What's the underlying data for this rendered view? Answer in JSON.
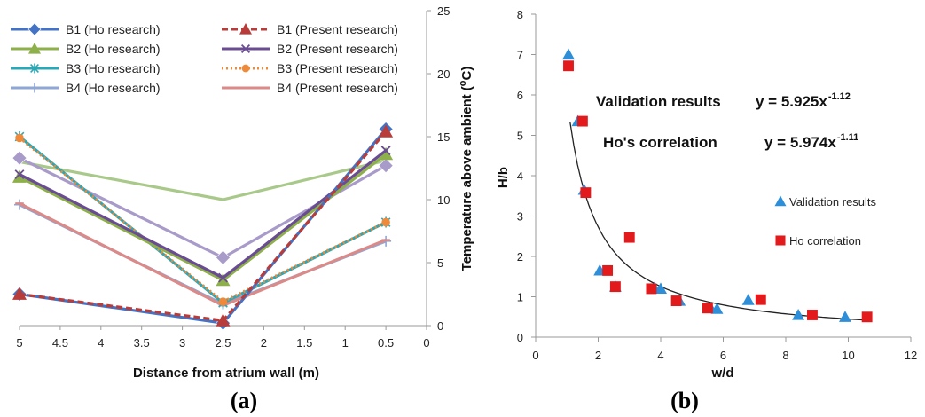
{
  "chart_data": [
    {
      "panel_label": "(a)",
      "type": "line",
      "xlabel": "Distance from atrium wall (m)",
      "ylabel_main": "Temperature above ambient (",
      "ylabel_sup": "o",
      "ylabel_tail": "C)",
      "x_reversed": true,
      "xlim": [
        0,
        5
      ],
      "ylim": [
        0,
        25
      ],
      "x_ticks": [
        "5",
        "4.5",
        "4",
        "3.5",
        "3",
        "2.5",
        "2",
        "1.5",
        "1",
        "0.5",
        "0"
      ],
      "y_ticks": [
        "0",
        "5",
        "10",
        "15",
        "20",
        "25"
      ],
      "y_axis_side": "right",
      "legend_position": "top",
      "x": [
        5,
        2.5,
        0.5
      ],
      "series": [
        {
          "name": "B1 (Ho research)",
          "values": [
            2.5,
            0.2,
            15.6
          ],
          "color": "#4472c4",
          "marker": "diamond",
          "dash": "solid"
        },
        {
          "name": "B1 (Present research)",
          "values": [
            2.5,
            0.4,
            15.4
          ],
          "color": "#b83c3a",
          "marker": "triangle",
          "dash": "dashed"
        },
        {
          "name": "B2 (Ho research)",
          "values": [
            11.8,
            3.6,
            13.6
          ],
          "color": "#8db04a",
          "marker": "triangle",
          "dash": "solid"
        },
        {
          "name": "B2 (Present research)",
          "values": [
            12.0,
            3.8,
            13.9
          ],
          "color": "#6a4c93",
          "marker": "x",
          "dash": "solid"
        },
        {
          "name": "B3 (Ho research)",
          "values": [
            15.0,
            1.8,
            8.2
          ],
          "color": "#2ca7b5",
          "marker": "asterisk",
          "dash": "solid"
        },
        {
          "name": "B3 (Present research)",
          "values": [
            14.9,
            1.9,
            8.2
          ],
          "color": "#ef8a3a",
          "marker": "circle",
          "dash": "dotted"
        },
        {
          "name": "B4 (Ho research)",
          "values": [
            9.6,
            1.7,
            6.7
          ],
          "color": "#8fa7d4",
          "marker": "plus",
          "dash": "solid"
        },
        {
          "name": "B4 (Present research)",
          "values": [
            9.7,
            1.6,
            6.8
          ],
          "color": "#db8a88",
          "marker": "dash",
          "dash": "solid"
        },
        {
          "name": "",
          "values": [
            13.0,
            10.0,
            13.1
          ],
          "color": "#a9c98a",
          "marker": "none",
          "dash": "solid"
        },
        {
          "name": "",
          "values": [
            13.3,
            5.4,
            12.7
          ],
          "color": "#a99bc9",
          "marker": "diamond",
          "dash": "solid"
        }
      ]
    },
    {
      "panel_label": "(b)",
      "type": "scatter",
      "xlabel": "w/d",
      "ylabel": "H/b",
      "xlim": [
        0,
        12
      ],
      "ylim": [
        0,
        8
      ],
      "x_ticks": [
        "0",
        "2",
        "4",
        "6",
        "8",
        "10",
        "12"
      ],
      "y_ticks": [
        "0",
        "1",
        "2",
        "3",
        "4",
        "5",
        "6",
        "7",
        "8"
      ],
      "legend_position": "right",
      "annotations": [
        {
          "label": "Validation results",
          "equation": "y = 5.925x",
          "exponent": "-1.12"
        },
        {
          "label": "Ho's correlation",
          "equation": "y = 5.974x",
          "exponent": "-1.11"
        }
      ],
      "fit": {
        "a": 5.925,
        "b": -1.12,
        "x_range": [
          1.1,
          10.6
        ],
        "color": "#222222"
      },
      "series": [
        {
          "name": "Validation results",
          "color": "#2e8fd8",
          "marker": "triangle",
          "points": [
            [
              1.05,
              7.0
            ],
            [
              1.35,
              5.35
            ],
            [
              1.55,
              3.65
            ],
            [
              2.05,
              1.65
            ],
            [
              2.55,
              1.25
            ],
            [
              3.8,
              1.22
            ],
            [
              4.0,
              1.2
            ],
            [
              4.6,
              0.9
            ],
            [
              5.6,
              0.72
            ],
            [
              5.8,
              0.7
            ],
            [
              6.8,
              0.92
            ],
            [
              8.4,
              0.55
            ],
            [
              9.9,
              0.5
            ]
          ]
        },
        {
          "name": "Ho correlation",
          "color": "#e31a1c",
          "marker": "square",
          "points": [
            [
              1.05,
              6.72
            ],
            [
              1.5,
              5.35
            ],
            [
              1.6,
              3.58
            ],
            [
              2.3,
              1.65
            ],
            [
              2.55,
              1.25
            ],
            [
              3.0,
              2.47
            ],
            [
              3.7,
              1.2
            ],
            [
              4.5,
              0.9
            ],
            [
              5.5,
              0.72
            ],
            [
              7.2,
              0.93
            ],
            [
              8.85,
              0.55
            ],
            [
              10.6,
              0.5
            ]
          ]
        }
      ]
    }
  ]
}
